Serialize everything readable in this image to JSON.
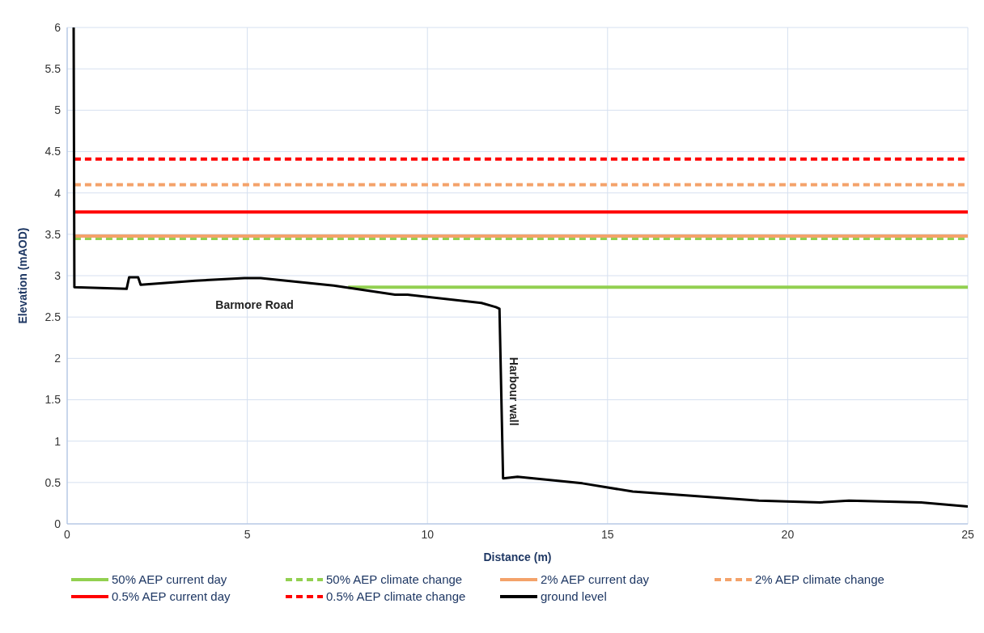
{
  "chart_data": {
    "type": "line",
    "xlabel": "Distance (m)",
    "ylabel": "Elevation (mAOD)",
    "xlim": [
      0,
      25
    ],
    "xticks": [
      0,
      5,
      10,
      15,
      20,
      25
    ],
    "ylim": [
      0,
      6
    ],
    "yticks": [
      0,
      0.5,
      1,
      1.5,
      2,
      2.5,
      3,
      3.5,
      4,
      4.5,
      5,
      5.5,
      6
    ],
    "grid": true,
    "legend": "bottom",
    "marker": "none",
    "series": [
      {
        "name": "50% AEP current day",
        "color": "#92d050",
        "line_style": "solid",
        "x": [
          7.8,
          25
        ],
        "values": [
          2.86,
          2.86
        ]
      },
      {
        "name": "50% AEP climate change",
        "color": "#92d050",
        "line_style": "dashed",
        "x": [
          0.2,
          25
        ],
        "values": [
          3.45,
          3.45
        ]
      },
      {
        "name": "2% AEP current day",
        "color": "#f4a26a",
        "line_style": "solid",
        "x": [
          0.2,
          25
        ],
        "values": [
          3.48,
          3.48
        ]
      },
      {
        "name": "2% AEP climate change",
        "color": "#f4a26a",
        "line_style": "dashed",
        "x": [
          0.2,
          25
        ],
        "values": [
          4.1,
          4.1
        ]
      },
      {
        "name": "0.5% AEP current day",
        "color": "#ff0000",
        "line_style": "solid",
        "x": [
          0.2,
          25
        ],
        "values": [
          3.77,
          3.77
        ]
      },
      {
        "name": "0.5% AEP climate change",
        "color": "#ff0000",
        "line_style": "dashed",
        "x": [
          0.2,
          25
        ],
        "values": [
          4.41,
          4.41
        ]
      },
      {
        "name": "ground level",
        "color": "#000000",
        "line_style": "solid",
        "x": [
          0.18,
          0.2,
          1.65,
          1.72,
          1.97,
          2.04,
          3.56,
          4.92,
          5.37,
          7.4,
          9.1,
          9.45,
          11.5,
          11.9,
          12.0,
          12.1,
          12.5,
          14.3,
          15.7,
          19.2,
          20.9,
          21.7,
          23.7,
          25
        ],
        "values": [
          6.0,
          2.86,
          2.84,
          2.98,
          2.98,
          2.89,
          2.94,
          2.97,
          2.97,
          2.88,
          2.77,
          2.77,
          2.67,
          2.62,
          2.6,
          0.55,
          0.57,
          0.49,
          0.39,
          0.28,
          0.26,
          0.28,
          0.26,
          0.21
        ]
      }
    ],
    "annotations": [
      "Barmore Road",
      "Harbour wall"
    ]
  }
}
